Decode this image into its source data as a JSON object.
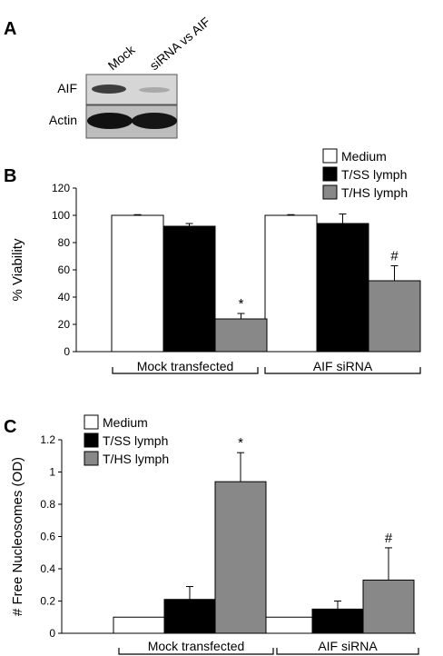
{
  "colors": {
    "medium": "#ffffff",
    "tss": "#000000",
    "ths": "#888888",
    "blot_band": "#222222",
    "blot_bg": "#d6d6d6"
  },
  "panel_a": {
    "label": "A",
    "lane_labels": [
      "Mock",
      "siRNA vs AIF"
    ],
    "row_labels": [
      "AIF",
      "Actin"
    ]
  },
  "chart_data": [
    {
      "panel": "B",
      "type": "bar",
      "ylabel": "% Viability",
      "ylim": [
        0,
        120
      ],
      "yticks": [
        0,
        20,
        40,
        60,
        80,
        100,
        120
      ],
      "groups": [
        "Mock transfected",
        "AIF siRNA"
      ],
      "series": [
        {
          "name": "Medium",
          "values": [
            100,
            100
          ],
          "errors": [
            0.5,
            0.5
          ],
          "marks": [
            "",
            ""
          ]
        },
        {
          "name": "T/SS lymph",
          "values": [
            92,
            94
          ],
          "errors": [
            2,
            7
          ],
          "marks": [
            "",
            ""
          ]
        },
        {
          "name": "T/HS lymph",
          "values": [
            24,
            52
          ],
          "errors": [
            4,
            11
          ],
          "marks": [
            "*",
            "#"
          ]
        }
      ],
      "legend": "top-right"
    },
    {
      "panel": "C",
      "type": "bar",
      "ylabel": "# Free Nucleosomes (OD)",
      "ylim": [
        0,
        1.2
      ],
      "yticks": [
        0,
        0.2,
        0.4,
        0.6,
        0.8,
        1,
        1.2
      ],
      "groups": [
        "Mock transfected",
        "AIF siRNA"
      ],
      "series": [
        {
          "name": "Medium",
          "values": [
            0.1,
            0.1
          ],
          "errors": [
            0,
            0
          ],
          "marks": [
            "",
            ""
          ]
        },
        {
          "name": "T/SS lymph",
          "values": [
            0.21,
            0.15
          ],
          "errors": [
            0.08,
            0.05
          ],
          "marks": [
            "",
            ""
          ]
        },
        {
          "name": "T/HS lymph",
          "values": [
            0.94,
            0.33
          ],
          "errors": [
            0.18,
            0.2
          ],
          "marks": [
            "*",
            "#"
          ]
        }
      ],
      "legend": "top-left"
    }
  ]
}
